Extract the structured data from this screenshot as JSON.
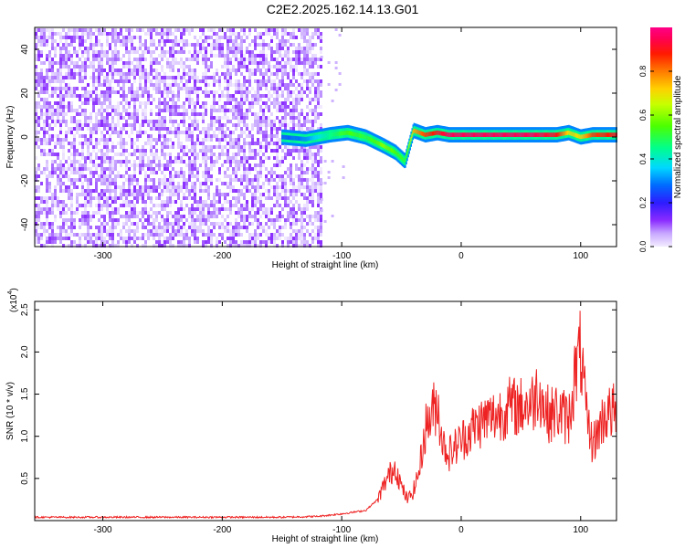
{
  "figure": {
    "title": "C2E2.2025.162.14.13.G01"
  },
  "chart_data": [
    {
      "type": "heatmap",
      "xlabel": "Height of straight line (km)",
      "ylabel": "Frequency (Hz)",
      "xlim": [
        -357,
        130
      ],
      "ylim": [
        -50,
        50
      ],
      "x_ticks": [
        -300,
        -200,
        -100,
        0,
        100
      ],
      "y_ticks": [
        -40,
        -20,
        0,
        20,
        40
      ],
      "colorbar": {
        "label": "Normalized spectral amplitude",
        "range": [
          0.0,
          1.0
        ],
        "ticks": [
          "0.0",
          "0.2",
          "0.4",
          "0.6",
          "0.8"
        ],
        "colormap": "rainbow (white-violet-blue-cyan-green-yellow-red-magenta)"
      },
      "noise_region": {
        "x_range": [
          -357,
          -118
        ],
        "amplitude_approx": [
          0.0,
          0.12
        ]
      },
      "ridge": {
        "x": [
          -150,
          -130,
          -110,
          -95,
          -80,
          -65,
          -55,
          -47,
          -40,
          -30,
          -20,
          -10,
          0,
          20,
          40,
          60,
          80,
          90,
          100,
          110,
          130
        ],
        "freq_hz": [
          0,
          -1,
          1,
          2,
          0,
          -4,
          -7,
          -11,
          3,
          1,
          2,
          1,
          1,
          1,
          1,
          1,
          1,
          2,
          0,
          1,
          1
        ],
        "amplitude": [
          0.25,
          0.3,
          0.45,
          0.55,
          0.5,
          0.6,
          0.55,
          0.5,
          0.75,
          0.85,
          0.9,
          0.95,
          0.95,
          0.95,
          0.95,
          0.95,
          0.9,
          0.7,
          0.7,
          0.85,
          0.9
        ]
      }
    },
    {
      "type": "line",
      "xlabel": "Height of straight line (km)",
      "ylabel": "SNR (10 * v/v)",
      "scale_label": "(x10",
      "scale_exp": "4",
      "y_scale": 10000,
      "xlim": [
        -357,
        130
      ],
      "ylim": [
        0,
        26000
      ],
      "x_ticks": [
        -300,
        -200,
        -100,
        0,
        100
      ],
      "y_ticks": [
        "0.5",
        "1.0",
        "1.5",
        "2.0",
        "2.5"
      ],
      "series_color": "#ee2222",
      "x": [
        -357,
        -300,
        -250,
        -200,
        -150,
        -120,
        -100,
        -80,
        -70,
        -62,
        -55,
        -50,
        -45,
        -40,
        -35,
        -30,
        -25,
        -20,
        -15,
        -10,
        0,
        10,
        20,
        30,
        40,
        50,
        60,
        65,
        70,
        75,
        80,
        90,
        95,
        100,
        105,
        110,
        120,
        130
      ],
      "y": [
        400,
        400,
        400,
        400,
        400,
        500,
        800,
        1200,
        2500,
        5000,
        6500,
        4000,
        2500,
        3500,
        6000,
        11000,
        12500,
        14000,
        9000,
        8000,
        9500,
        11000,
        12000,
        12500,
        13500,
        13500,
        14000,
        16000,
        13000,
        12500,
        13000,
        12000,
        17000,
        20000,
        12000,
        9000,
        12500,
        13000
      ]
    }
  ]
}
